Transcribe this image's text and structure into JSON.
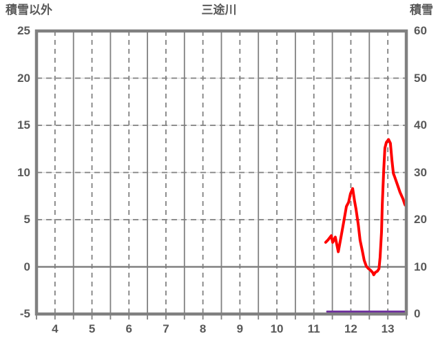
{
  "header": {
    "left_axis_title": "積雪以外",
    "chart_title": "三途川",
    "right_axis_title": "積雪"
  },
  "colors": {
    "frame": "#808080",
    "grid_dark": "#808080",
    "grid_light": "#d9d9d9",
    "label_text": "#595959",
    "series_red": "#ff0000",
    "series_purple": "#7030a0",
    "background": "#ffffff"
  },
  "chart_data": {
    "type": "line",
    "title": "三途川",
    "left_axis": {
      "title": "積雪以外",
      "min": -5,
      "max": 25,
      "tick_labels": [
        "25",
        "20",
        "15",
        "10",
        "5",
        "0",
        "-5"
      ],
      "tick_values": [
        25,
        20,
        15,
        10,
        5,
        0,
        -5
      ]
    },
    "right_axis": {
      "title": "積雪",
      "min": 0,
      "max": 60,
      "tick_labels": [
        "60",
        "50",
        "40",
        "30",
        "20",
        "10",
        "0"
      ],
      "tick_values": [
        60,
        50,
        40,
        30,
        20,
        10,
        0
      ]
    },
    "x_axis": {
      "min": 4,
      "max": 14,
      "tick_labels": [
        "4",
        "5",
        "6",
        "7",
        "8",
        "9",
        "10",
        "11",
        "12",
        "13"
      ],
      "label_positions": [
        4.5,
        5.5,
        6.5,
        7.5,
        8.5,
        9.5,
        10.5,
        11.5,
        12.5,
        13.5
      ],
      "solid_gridlines": [
        5,
        6,
        7,
        8,
        9,
        10,
        11,
        12,
        13
      ],
      "dashed_gridlines": [
        4.5,
        5.5,
        6.5,
        7.5,
        8.5,
        9.5,
        10.5,
        11.5,
        12.5,
        13.5
      ],
      "minor_tick_step": 0.5
    },
    "y_gridlines_dashed": [
      20,
      15,
      10,
      5
    ],
    "y_gridlines_solid": [
      0
    ],
    "grid": true,
    "legend": false,
    "series": [
      {
        "name": "積雪以外",
        "axis": "left",
        "color": "#ff0000",
        "width": 4,
        "points": [
          [
            11.82,
            2.6
          ],
          [
            11.88,
            2.85
          ],
          [
            11.97,
            3.3
          ],
          [
            12.01,
            2.6
          ],
          [
            12.08,
            3.15
          ],
          [
            12.16,
            1.6
          ],
          [
            12.23,
            3.1
          ],
          [
            12.31,
            4.8
          ],
          [
            12.38,
            6.4
          ],
          [
            12.44,
            6.85
          ],
          [
            12.49,
            7.75
          ],
          [
            12.55,
            8.3
          ],
          [
            12.6,
            7.0
          ],
          [
            12.64,
            6.1
          ],
          [
            12.7,
            4.5
          ],
          [
            12.75,
            2.8
          ],
          [
            12.81,
            1.7
          ],
          [
            12.86,
            0.7
          ],
          [
            12.92,
            0.05
          ],
          [
            12.98,
            -0.2
          ],
          [
            13.03,
            -0.35
          ],
          [
            13.09,
            -0.6
          ],
          [
            13.12,
            -0.85
          ],
          [
            13.16,
            -0.6
          ],
          [
            13.22,
            -0.45
          ],
          [
            13.26,
            -0.2
          ],
          [
            13.29,
            1.0
          ],
          [
            13.33,
            3.7
          ],
          [
            13.35,
            6.6
          ],
          [
            13.39,
            10.3
          ],
          [
            13.42,
            12.6
          ],
          [
            13.46,
            13.2
          ],
          [
            13.52,
            13.5
          ],
          [
            13.57,
            13.1
          ],
          [
            13.61,
            11.3
          ],
          [
            13.65,
            9.9
          ],
          [
            13.68,
            9.6
          ],
          [
            13.76,
            8.7
          ],
          [
            13.83,
            7.9
          ],
          [
            13.91,
            7.2
          ],
          [
            13.96,
            6.6
          ],
          [
            14.0,
            6.4
          ]
        ]
      },
      {
        "name": "積雪",
        "axis": "right",
        "color": "#7030a0",
        "width": 3,
        "points": [
          [
            11.86,
            0
          ],
          [
            14.0,
            0
          ]
        ]
      }
    ]
  }
}
